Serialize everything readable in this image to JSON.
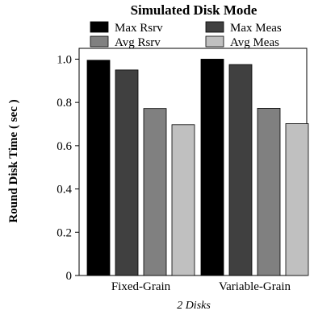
{
  "chart_data": {
    "type": "bar",
    "title": "Simulated Disk Mode",
    "ylabel": "Round Disk Time ( sec )",
    "xlabel": "2 Disks",
    "categories": [
      "Fixed-Grain",
      "Variable-Grain"
    ],
    "series": [
      {
        "name": "Max Rsrv",
        "color": "#000000",
        "values": [
          0.995,
          1.0
        ]
      },
      {
        "name": "Max Meas",
        "color": "#404040",
        "values": [
          0.95,
          0.975
        ]
      },
      {
        "name": "Avg Rsrv",
        "color": "#808080",
        "values": [
          0.772,
          0.773
        ]
      },
      {
        "name": "Avg Meas",
        "color": "#c0c0c0",
        "values": [
          0.697,
          0.702
        ]
      }
    ],
    "ylim": [
      0,
      1.05
    ],
    "yticks": [
      0,
      0.2,
      0.4,
      0.6,
      0.8,
      1.0
    ],
    "ytick_labels": [
      "0",
      "0.2",
      "0.4",
      "0.6",
      "0.8",
      "1.0"
    ],
    "grid": false,
    "legend_position": "top"
  }
}
